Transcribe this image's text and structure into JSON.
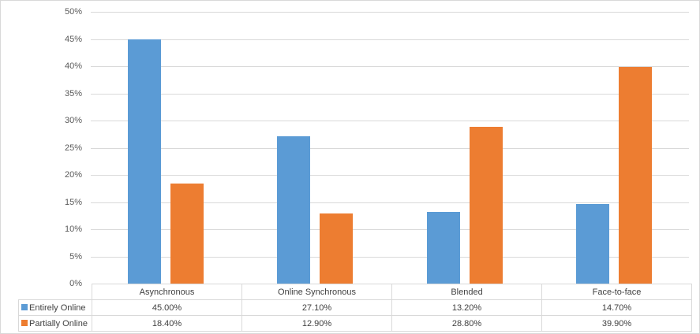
{
  "chart_data": {
    "type": "bar",
    "title": "",
    "xlabel": "",
    "ylabel": "",
    "ylim": [
      0,
      0.5
    ],
    "y_ticks": [
      "0%",
      "5%",
      "10%",
      "15%",
      "20%",
      "25%",
      "30%",
      "35%",
      "40%",
      "45%",
      "50%"
    ],
    "grid": true,
    "legend_position": "data-table",
    "categories": [
      "Asynchronous",
      "Online Synchronous",
      "Blended",
      "Face-to-face"
    ],
    "series": [
      {
        "name": "Entirely Online",
        "color": "#5b9bd5",
        "values": [
          45.0,
          27.1,
          13.2,
          14.7
        ],
        "labels": [
          "45.00%",
          "27.10%",
          "13.20%",
          "14.70%"
        ]
      },
      {
        "name": "Partially Online",
        "color": "#ed7d31",
        "values": [
          18.4,
          12.9,
          28.8,
          39.9
        ],
        "labels": [
          "18.40%",
          "12.90%",
          "28.80%",
          "39.90%"
        ]
      }
    ]
  }
}
